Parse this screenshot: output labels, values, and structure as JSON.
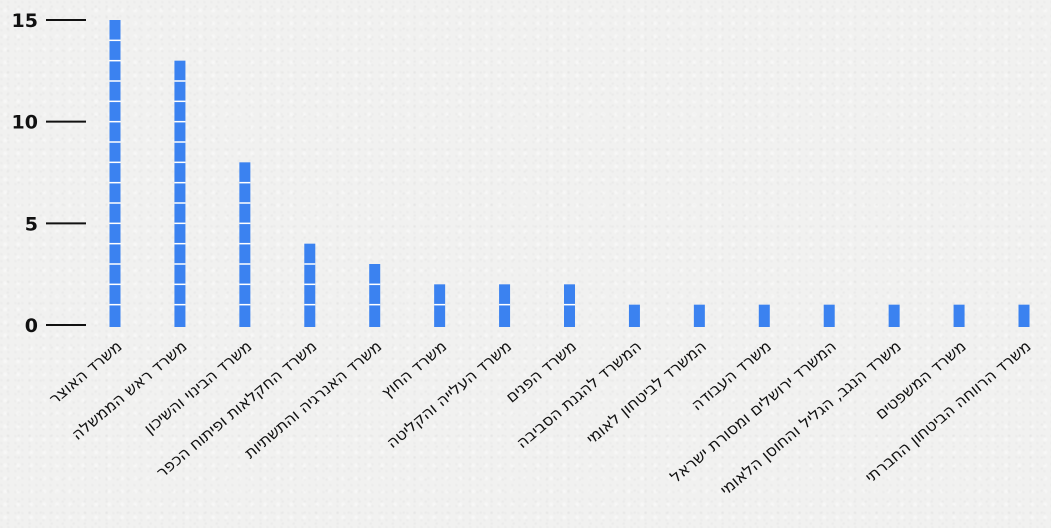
{
  "chart_data": {
    "type": "bar",
    "orientation": "vertical",
    "ylim": [
      0,
      15
    ],
    "yticks": [
      0,
      5,
      10,
      15
    ],
    "grid": false,
    "legend": "none",
    "colors": {
      "bar": "#3b82f0",
      "bar_segment_line": "#ffffff",
      "axis_tick": "#111111",
      "background": "#f1f1f0"
    },
    "categories": [
      "משרד האוצר",
      "משרד ראש הממשלה",
      "משרד הבינוי והשיכון",
      "משרד החקלאות ופיתוח הכפר",
      "משרד האנרגיה והתשתיות",
      "משרד החוץ",
      "משרד העלייה והקליטה",
      "משרד הפנים",
      "המשרד להגנת הסביבה",
      "המשרד לביטחון לאומי",
      "משרד העבודה",
      "המשרד ירושלים ומסורת ישראל",
      "משרד הנגב, הגליל והחוסן הלאומי",
      "משרד המשפטים",
      "משרד הרווחה הביטחון החברתי"
    ],
    "values": [
      15,
      13,
      8,
      4,
      3,
      2,
      2,
      2,
      1,
      1,
      1,
      1,
      1,
      1,
      1
    ]
  }
}
